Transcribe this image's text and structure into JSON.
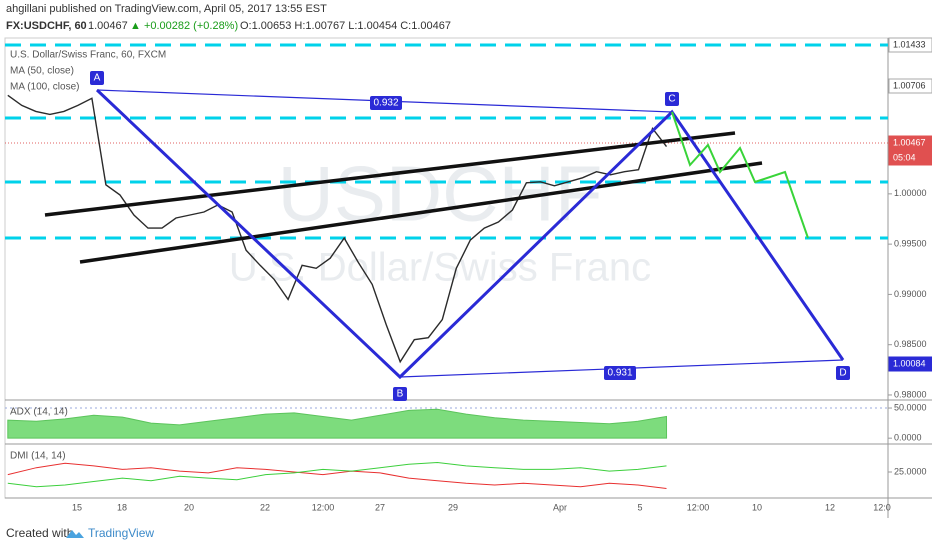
{
  "header": {
    "publisher": "ahgillani published on TradingView.com, April 05, 2017 13:55 EST",
    "symbol": "FX:USDCHF, 60",
    "price": "1.00467",
    "change": "▲ +0.00282 (+0.28%)",
    "ohlc": "O:1.00653 H:1.00767 L:1.00454 C:1.00467"
  },
  "chart_data": [
    {
      "type": "line",
      "color": "#2b2b2b",
      "legend": [
        "U.S. Dollar/Swiss Franc, 60, FXCM",
        "MA (50, close)",
        "MA (100, close)"
      ],
      "watermark": [
        "USDCHF",
        "U.S. Dollar/Swiss Franc"
      ],
      "values": [
        1.0098,
        1.0088,
        1.0082,
        1.0079,
        1.0082,
        1.0088,
        1.0095,
        1.0009,
        0.9999,
        0.9979,
        0.9966,
        0.9966,
        0.9976,
        0.9979,
        0.9982,
        0.9989,
        0.9982,
        0.9944,
        0.9929,
        0.9915,
        0.9895,
        0.9929,
        0.9926,
        0.9936,
        0.9956,
        0.9932,
        0.991,
        0.987,
        0.9833,
        0.9855,
        0.9857,
        0.9875,
        0.9926,
        0.9954,
        0.9966,
        0.9972,
        0.9984,
        1.0011,
        1.0012,
        1.0008,
        1.0012,
        1.0016,
        1.0022,
        1.0019,
        1.0022,
        1.0024,
        1.0065,
        1.0047
      ],
      "xlim": [
        -0.2,
        62.8
      ],
      "ylim": [
        0.9795,
        1.0155
      ],
      "yticks": [
        {
          "value": 1.0,
          "label": "1.00000"
        },
        {
          "value": 0.995,
          "label": "0.99500"
        },
        {
          "value": 0.99,
          "label": "0.99000"
        },
        {
          "value": 0.985,
          "label": "0.98500"
        },
        {
          "value": 0.98,
          "label": "0.98000"
        }
      ],
      "xtick_labels": [
        "15",
        "18",
        "20",
        "22",
        "12:00",
        "27",
        "29",
        "Apr",
        "5",
        "12:00",
        "10",
        "12",
        "12:0"
      ],
      "price_labels": [
        "1.01433",
        "1.00706",
        "1.00467",
        "05:04",
        "1.00084"
      ],
      "pattern_labels": [
        "A",
        "B",
        "C",
        "D",
        "0.932",
        "0.931"
      ]
    },
    {
      "type": "area",
      "title": "ADX (14, 14)",
      "color": "#7ddc7d",
      "values": [
        30,
        28,
        32,
        38,
        35,
        25,
        22,
        28,
        34,
        40,
        42,
        36,
        30,
        38,
        46,
        48,
        40,
        34,
        30,
        28,
        26,
        24,
        28,
        36
      ],
      "ylim": [
        -8,
        60
      ],
      "yticks": [
        {
          "value": 50,
          "label": "50.0000"
        },
        {
          "value": 0,
          "label": "0.0000"
        }
      ]
    },
    {
      "type": "line",
      "title": "DMI (14, 14)",
      "series": [
        {
          "color": "#e83030",
          "values": [
            22,
            30,
            35,
            32,
            28,
            30,
            26,
            24,
            30,
            28,
            25,
            22,
            26,
            24,
            18,
            15,
            12,
            10,
            12,
            10,
            8,
            12,
            10,
            6
          ]
        },
        {
          "color": "#3ccf3c",
          "values": [
            12,
            8,
            10,
            14,
            18,
            15,
            20,
            18,
            16,
            22,
            24,
            28,
            26,
            30,
            34,
            36,
            32,
            30,
            28,
            28,
            30,
            26,
            28,
            32
          ]
        }
      ],
      "ylim": [
        -5,
        55
      ],
      "yticks": [
        {
          "value": 25,
          "label": "25.0000"
        }
      ]
    }
  ],
  "footer": {
    "created": "Created with",
    "brand": "TradingView"
  }
}
